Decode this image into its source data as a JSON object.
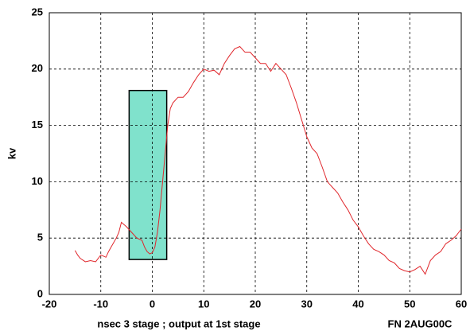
{
  "chart_data": {
    "type": "line",
    "ylabel": "kv",
    "xlabel": "nsec 3 stage ; output at 1st stage",
    "annotation": "FN 2AUG00C",
    "xlim": [
      -20,
      60
    ],
    "xticks": [
      -20,
      -10,
      0,
      10,
      20,
      30,
      40,
      50,
      60
    ],
    "ylim": [
      0,
      25
    ],
    "yticks": [
      0,
      5,
      10,
      15,
      20,
      25
    ],
    "grid": true,
    "highlight": {
      "xlim": [
        -4.5,
        2.8
      ],
      "ylim": [
        3.1,
        18.1
      ],
      "color": "#80e2cc"
    },
    "series": [
      {
        "color": "#e0262b",
        "x": [
          -15,
          -14.5,
          -14,
          -13,
          -12,
          -11,
          -10,
          -9,
          -8.5,
          -8,
          -7,
          -6.5,
          -6,
          -5,
          -4,
          -3,
          -2,
          -1.5,
          -1,
          -0.5,
          0,
          0.5,
          1,
          1.5,
          2,
          2.5,
          3,
          3.5,
          4,
          5,
          6,
          7,
          8,
          9,
          10,
          11,
          12,
          13,
          14,
          15,
          16,
          17,
          18,
          19,
          20,
          21,
          22,
          23,
          24,
          25,
          26,
          27,
          28,
          29,
          30,
          31,
          32,
          33,
          34,
          35,
          36,
          37,
          38,
          39,
          40,
          41,
          42,
          43,
          44,
          45,
          46,
          47,
          48,
          49,
          50,
          51,
          52,
          53,
          54,
          55,
          56,
          57,
          58,
          59,
          60
        ],
        "values": [
          3.9,
          3.5,
          3.2,
          2.9,
          3.0,
          2.9,
          3.5,
          3.3,
          3.8,
          4.2,
          5.0,
          5.5,
          6.4,
          6.0,
          5.5,
          5.0,
          4.8,
          4.2,
          3.8,
          3.6,
          3.7,
          4.2,
          5.5,
          7.5,
          10,
          12.5,
          15,
          16.5,
          17.0,
          17.5,
          17.5,
          18,
          18.8,
          19.5,
          20,
          19.8,
          19.9,
          19.5,
          20.5,
          21.2,
          21.8,
          22,
          21.5,
          21.5,
          21.0,
          20.5,
          20.5,
          19.8,
          20.5,
          20,
          19.5,
          18.3,
          17,
          15.5,
          14,
          13,
          12.5,
          11.3,
          10,
          9.5,
          9.0,
          8.2,
          7.5,
          6.6,
          6.0,
          5.2,
          4.5,
          4.0,
          3.8,
          3.5,
          3.0,
          2.8,
          2.3,
          2.1,
          2.0,
          2.2,
          2.5,
          1.8,
          3.0,
          3.5,
          3.8,
          4.5,
          4.8,
          5.2,
          5.8
        ]
      }
    ]
  }
}
